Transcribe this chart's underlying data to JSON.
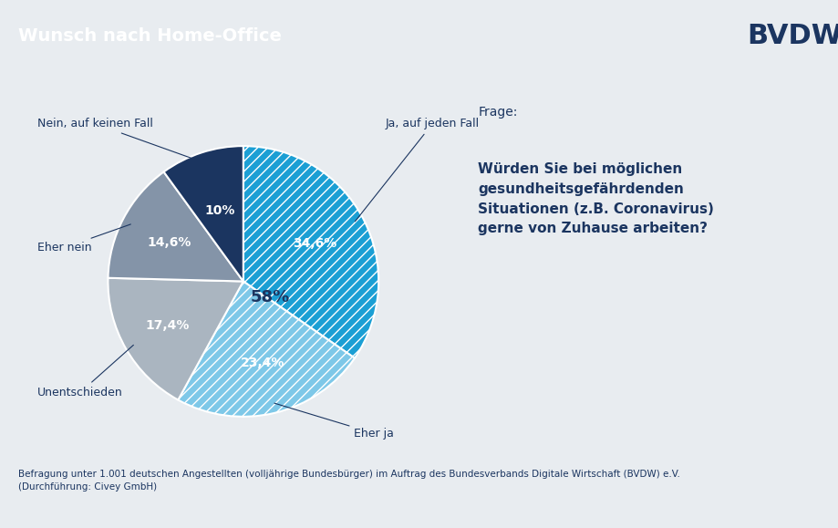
{
  "title": "Wunsch nach Home-Office",
  "header_bg": "#1b3560",
  "header_text_color": "#ffffff",
  "body_bg": "#e8ecf0",
  "bvdw_text": "BVDW",
  "bvdw_box_bg": "#ffffff",
  "bvdw_box_border": "#1b3560",
  "slices": [
    {
      "label": "Ja, auf jeden Fall",
      "value": 34.6,
      "display": "34,6%",
      "color": "#1b9fd4",
      "hatch": "///"
    },
    {
      "label": "Eher ja",
      "value": 23.4,
      "display": "23,4%",
      "color": "#7ec8e8",
      "hatch": "///"
    },
    {
      "label": "Unentschieden",
      "value": 17.4,
      "display": "17,4%",
      "color": "#aab5c0",
      "hatch": ""
    },
    {
      "label": "Eher nein",
      "value": 14.6,
      "display": "14,6%",
      "color": "#8494a8",
      "hatch": ""
    },
    {
      "label": "Nein, auf keinen Fall",
      "value": 10.0,
      "display": "10%",
      "color": "#1b3560",
      "hatch": ""
    }
  ],
  "combined_pct": "58%",
  "frage_label": "Frage:",
  "frage_text": "Würden Sie bei möglichen\ngesundheitsgefährdenden\nSituationen (z.B. Coronavirus)\ngerne von Zuhause arbeiten?",
  "footnote": "Befragung unter 1.001 deutschen Angestellten (volljährige Bundesbürger) im Auftrag des Bundesverbands Digitale Wirtschaft (BVDW) e.V.\n(Durchführung: Civey GmbH)",
  "label_color": "#1b3560",
  "label_inside_light": "#ffffff",
  "label_inside_dark": "#1b3560",
  "pie_label_fontsize": 10,
  "external_label_fontsize": 9,
  "title_fontsize": 14,
  "frage_label_fontsize": 10,
  "frage_text_fontsize": 11,
  "footnote_fontsize": 7.5,
  "combined_fontsize": 13,
  "bvdw_fontsize": 22
}
